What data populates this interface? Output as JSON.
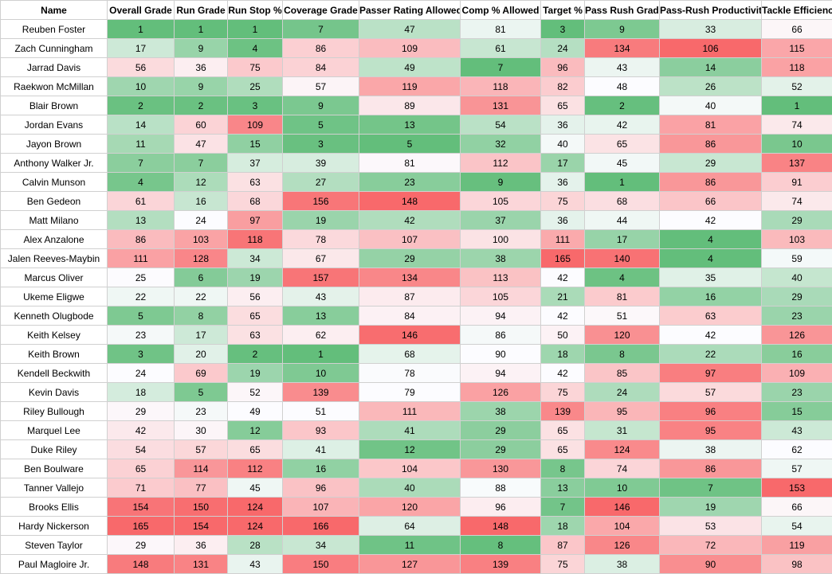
{
  "columns": [
    "Name",
    "Overall Grade",
    "Run Grade",
    "Run Stop %",
    "Coverage Grade",
    "Passer Rating Allowed",
    "Comp % Allowed",
    "Target %",
    "Pass Rush Grade",
    "Pass-Rush Productivity",
    "Tackle Efficiency"
  ],
  "rows": [
    {
      "name": "Reuben Foster",
      "values": [
        1,
        1,
        1,
        7,
        47,
        81,
        3,
        9,
        33,
        66
      ]
    },
    {
      "name": "Zach Cunningham",
      "values": [
        17,
        9,
        4,
        86,
        109,
        61,
        24,
        134,
        106,
        115
      ]
    },
    {
      "name": "Jarrad Davis",
      "values": [
        56,
        36,
        75,
        84,
        49,
        7,
        96,
        43,
        14,
        118
      ]
    },
    {
      "name": "Raekwon McMillan",
      "values": [
        10,
        9,
        25,
        57,
        119,
        118,
        82,
        48,
        26,
        52
      ]
    },
    {
      "name": "Blair Brown",
      "values": [
        2,
        2,
        3,
        9,
        89,
        131,
        65,
        2,
        40,
        1
      ]
    },
    {
      "name": "Jordan Evans",
      "values": [
        14,
        60,
        109,
        5,
        13,
        54,
        36,
        42,
        81,
        74
      ]
    },
    {
      "name": "Jayon Brown",
      "values": [
        11,
        47,
        15,
        3,
        5,
        32,
        40,
        65,
        86,
        10
      ]
    },
    {
      "name": "Anthony Walker Jr.",
      "values": [
        7,
        7,
        37,
        39,
        81,
        112,
        17,
        45,
        29,
        137
      ]
    },
    {
      "name": "Calvin Munson",
      "values": [
        4,
        12,
        63,
        27,
        23,
        9,
        36,
        1,
        86,
        91
      ]
    },
    {
      "name": "Ben Gedeon",
      "values": [
        61,
        16,
        68,
        156,
        148,
        105,
        75,
        68,
        66,
        74
      ]
    },
    {
      "name": "Matt Milano",
      "values": [
        13,
        24,
        97,
        19,
        42,
        37,
        36,
        44,
        42,
        29
      ]
    },
    {
      "name": "Alex Anzalone",
      "values": [
        86,
        103,
        118,
        78,
        107,
        100,
        111,
        17,
        4,
        103
      ]
    },
    {
      "name": "Jalen Reeves-Maybin",
      "values": [
        111,
        128,
        34,
        67,
        29,
        38,
        165,
        140,
        4,
        59
      ]
    },
    {
      "name": "Marcus Oliver",
      "values": [
        25,
        6,
        19,
        157,
        134,
        113,
        42,
        4,
        35,
        40
      ]
    },
    {
      "name": "Ukeme Eligwe",
      "values": [
        22,
        22,
        56,
        43,
        87,
        105,
        21,
        81,
        16,
        29
      ]
    },
    {
      "name": "Kenneth Olugbode",
      "values": [
        5,
        8,
        65,
        13,
        84,
        94,
        42,
        51,
        63,
        23
      ]
    },
    {
      "name": "Keith Kelsey",
      "values": [
        23,
        17,
        63,
        62,
        146,
        86,
        50,
        120,
        42,
        126
      ]
    },
    {
      "name": "Keith Brown",
      "values": [
        3,
        20,
        2,
        1,
        68,
        90,
        18,
        8,
        22,
        16
      ]
    },
    {
      "name": "Kendell Beckwith",
      "values": [
        24,
        69,
        19,
        10,
        78,
        94,
        42,
        85,
        97,
        109
      ]
    },
    {
      "name": "Kevin Davis",
      "values": [
        18,
        5,
        52,
        139,
        79,
        126,
        75,
        24,
        57,
        23
      ]
    },
    {
      "name": "Riley Bullough",
      "values": [
        29,
        23,
        49,
        51,
        111,
        38,
        139,
        95,
        96,
        15
      ]
    },
    {
      "name": "Marquel Lee",
      "values": [
        42,
        30,
        12,
        93,
        41,
        29,
        65,
        31,
        95,
        43
      ]
    },
    {
      "name": "Duke Riley",
      "values": [
        54,
        57,
        65,
        41,
        12,
        29,
        65,
        124,
        38,
        62
      ]
    },
    {
      "name": "Ben Boulware",
      "values": [
        65,
        114,
        112,
        16,
        104,
        130,
        8,
        74,
        86,
        57
      ]
    },
    {
      "name": "Tanner Vallejo",
      "values": [
        71,
        77,
        45,
        96,
        40,
        88,
        13,
        10,
        7,
        153
      ]
    },
    {
      "name": "Brooks Ellis",
      "values": [
        154,
        150,
        124,
        107,
        120,
        96,
        7,
        146,
        19,
        66
      ]
    },
    {
      "name": "Hardy Nickerson",
      "values": [
        165,
        154,
        124,
        166,
        64,
        148,
        18,
        104,
        53,
        54
      ]
    },
    {
      "name": "Steven Taylor",
      "values": [
        29,
        36,
        28,
        34,
        11,
        8,
        87,
        126,
        72,
        119
      ]
    },
    {
      "name": "Paul Magloire Jr.",
      "values": [
        148,
        131,
        43,
        150,
        127,
        139,
        75,
        38,
        90,
        98
      ]
    }
  ],
  "colors": {
    "low": "#63be7b",
    "mid": "#fcfcff",
    "high": "#f8696b"
  }
}
